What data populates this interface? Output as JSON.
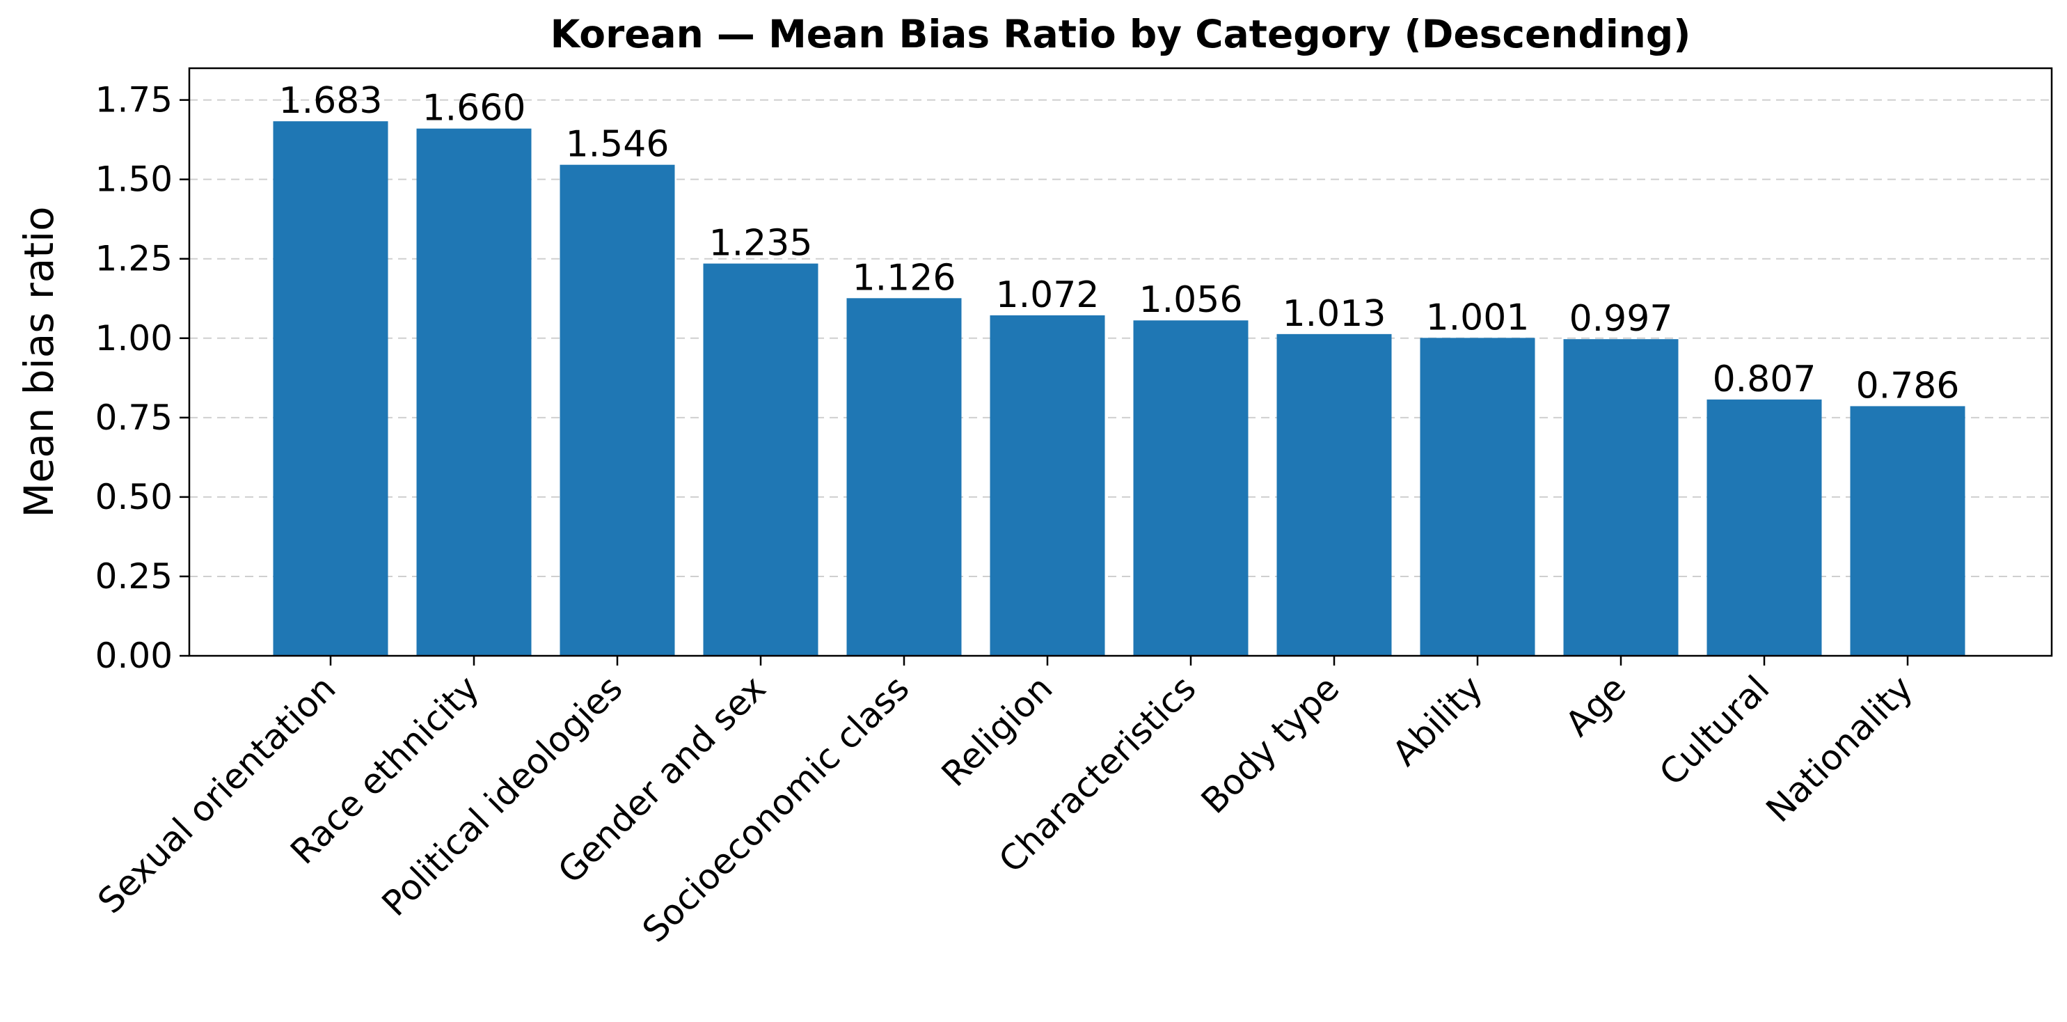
{
  "chart_data": {
    "type": "bar",
    "title": "Korean — Mean Bias Ratio by Category (Descending)",
    "xlabel": "",
    "ylabel": "Mean bias ratio",
    "ylim": [
      0,
      1.85
    ],
    "yticks": [
      "0.00",
      "0.25",
      "0.50",
      "0.75",
      "1.00",
      "1.25",
      "1.50",
      "1.75"
    ],
    "ytick_values": [
      0,
      0.25,
      0.5,
      0.75,
      1.0,
      1.25,
      1.5,
      1.75
    ],
    "categories": [
      "Sexual orientation",
      "Race ethnicity",
      "Political ideologies",
      "Gender and sex",
      "Socioeconomic class",
      "Religion",
      "Characteristics",
      "Body type",
      "Ability",
      "Age",
      "Cultural",
      "Nationality"
    ],
    "values": [
      1.683,
      1.66,
      1.546,
      1.235,
      1.126,
      1.072,
      1.056,
      1.013,
      1.001,
      0.997,
      0.807,
      0.786
    ],
    "value_labels": [
      "1.683",
      "1.660",
      "1.546",
      "1.235",
      "1.126",
      "1.072",
      "1.056",
      "1.013",
      "1.001",
      "0.997",
      "0.807",
      "0.786"
    ],
    "grid": "y-dashed",
    "bar_color": "#1f77b4"
  }
}
